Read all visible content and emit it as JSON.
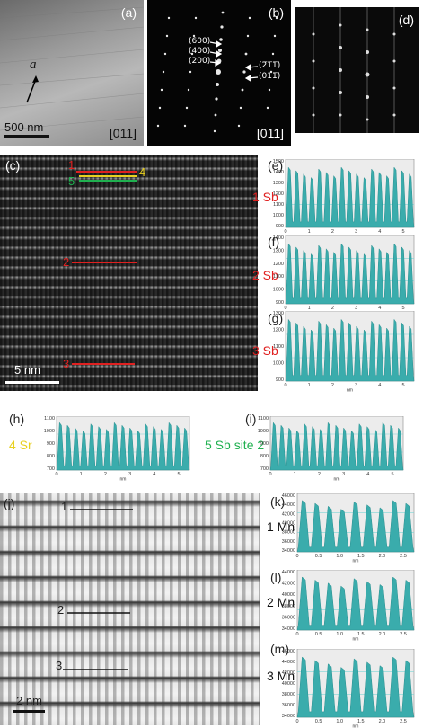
{
  "panels": {
    "a": {
      "label": "(a)",
      "zone_axis": "[011]",
      "scale_text": "500 nm",
      "vector_label": "a"
    },
    "b": {
      "label": "(b)",
      "zone_axis": "[011]",
      "spots": [
        "(600)",
        "(400)",
        "(200)",
        "(2̅1̅1̅)",
        "(011̅)"
      ]
    },
    "d": {
      "label": "(d)"
    },
    "c": {
      "label": "(c)",
      "scale_text": "5 nm",
      "line_marks": [
        "1",
        "4",
        "5",
        "2",
        "3"
      ]
    },
    "j": {
      "label": "(j)",
      "scale_text": "2 nm",
      "line_marks": [
        "1",
        "2",
        "3"
      ]
    }
  },
  "profiles": [
    {
      "id": "e",
      "label": "(e)",
      "site": "1 Sb",
      "color": "#e02020",
      "yticks": [
        "1500",
        "1400",
        "1300",
        "1200",
        "1100",
        "1000",
        "900"
      ],
      "xticks": [
        "0",
        "1",
        "2",
        "3",
        "4",
        "5"
      ],
      "xunit": "nm"
    },
    {
      "id": "f",
      "label": "(f)",
      "site": "2 Sb",
      "color": "#e02020",
      "yticks": [
        "1400",
        "1300",
        "1200",
        "1100",
        "1000",
        "900"
      ],
      "xticks": [
        "0",
        "1",
        "2",
        "3",
        "4",
        "5"
      ],
      "xunit": "nm"
    },
    {
      "id": "g",
      "label": "(g)",
      "site": "3 Sb",
      "color": "#e02020",
      "yticks": [
        "1300",
        "1200",
        "1100",
        "1000",
        "900"
      ],
      "xticks": [
        "0",
        "1",
        "2",
        "3",
        "4",
        "5"
      ],
      "xunit": "nm"
    },
    {
      "id": "h",
      "label": "(h)",
      "site": "4 Sr",
      "color": "#e8d020",
      "yticks": [
        "1100",
        "1000",
        "900",
        "800",
        "700"
      ],
      "xticks": [
        "0",
        "1",
        "2",
        "3",
        "4",
        "5"
      ],
      "xunit": "nm"
    },
    {
      "id": "i",
      "label": "(i)",
      "site": "5 Sb site 2",
      "color": "#20b050",
      "yticks": [
        "1100",
        "1000",
        "900",
        "800",
        "700"
      ],
      "xticks": [
        "0",
        "1",
        "2",
        "3",
        "4",
        "5"
      ],
      "xunit": "nm"
    },
    {
      "id": "k",
      "label": "(k)",
      "site": "1 Mn",
      "color": "#111111",
      "yticks": [
        "46000",
        "44000",
        "42000",
        "40000",
        "38000",
        "36000",
        "34000"
      ],
      "xticks": [
        "0",
        "0.5",
        "1.0",
        "1.5",
        "2.0",
        "2.5"
      ],
      "xunit": "nm"
    },
    {
      "id": "l",
      "label": "(l)",
      "site": "2 Mn",
      "color": "#111111",
      "yticks": [
        "44000",
        "42000",
        "40000",
        "38000",
        "36000",
        "34000"
      ],
      "xticks": [
        "0",
        "0.5",
        "1.0",
        "1.5",
        "2.0",
        "2.5"
      ],
      "xunit": "nm"
    },
    {
      "id": "m",
      "label": "(m)",
      "site": "3 Mn",
      "color": "#111111",
      "yticks": [
        "46000",
        "44000",
        "42000",
        "40000",
        "38000",
        "36000",
        "34000"
      ],
      "xticks": [
        "0",
        "0.5",
        "1.0",
        "1.5",
        "2.0",
        "2.5"
      ],
      "xunit": "nm"
    }
  ]
}
